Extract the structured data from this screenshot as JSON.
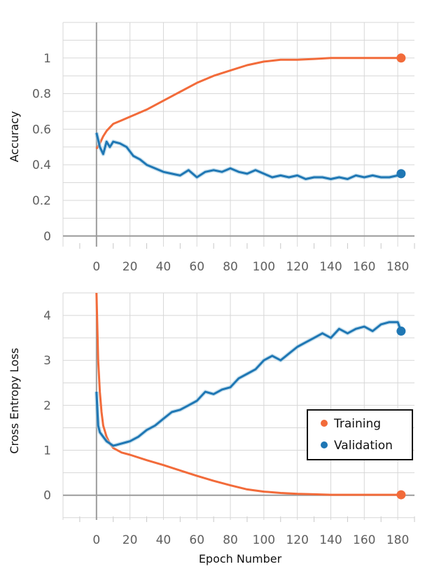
{
  "colors": {
    "training": "#f26b3a",
    "validation": "#1f77b4",
    "validation_raw": "#a6cee3"
  },
  "chart_data": [
    {
      "type": "line",
      "title": "",
      "xlabel": "",
      "ylabel": "Accuracy",
      "xlim": [
        -20,
        190
      ],
      "ylim": [
        -0.06,
        1.2
      ],
      "xticks": [
        0,
        20,
        40,
        60,
        80,
        100,
        120,
        140,
        160,
        180
      ],
      "yticks": [
        0,
        0.2,
        0.4,
        0.6,
        0.8,
        1
      ],
      "ytick_labels": [
        "0",
        "0.2",
        "0.4",
        "0.6",
        "0.8",
        "1"
      ],
      "grid": true,
      "series": [
        {
          "name": "Training",
          "x": [
            0,
            2,
            4,
            6,
            8,
            10,
            15,
            20,
            25,
            30,
            40,
            50,
            60,
            70,
            80,
            90,
            100,
            110,
            120,
            130,
            140,
            150,
            160,
            170,
            180,
            182
          ],
          "y": [
            0.49,
            0.52,
            0.56,
            0.59,
            0.61,
            0.63,
            0.65,
            0.67,
            0.69,
            0.71,
            0.76,
            0.81,
            0.86,
            0.9,
            0.93,
            0.96,
            0.98,
            0.99,
            0.99,
            0.995,
            1.0,
            1.0,
            1.0,
            1.0,
            1.0,
            1.0
          ]
        },
        {
          "name": "Validation",
          "x": [
            0,
            2,
            4,
            6,
            8,
            10,
            14,
            18,
            22,
            26,
            30,
            35,
            40,
            45,
            50,
            55,
            60,
            65,
            70,
            75,
            80,
            85,
            90,
            95,
            100,
            105,
            110,
            115,
            120,
            125,
            130,
            135,
            140,
            145,
            150,
            155,
            160,
            165,
            170,
            175,
            180,
            182
          ],
          "y": [
            0.58,
            0.5,
            0.46,
            0.53,
            0.5,
            0.53,
            0.52,
            0.5,
            0.45,
            0.43,
            0.4,
            0.38,
            0.36,
            0.35,
            0.34,
            0.37,
            0.33,
            0.36,
            0.37,
            0.36,
            0.38,
            0.36,
            0.35,
            0.37,
            0.35,
            0.33,
            0.34,
            0.33,
            0.34,
            0.32,
            0.33,
            0.33,
            0.32,
            0.33,
            0.32,
            0.34,
            0.33,
            0.34,
            0.33,
            0.33,
            0.34,
            0.35
          ]
        }
      ]
    },
    {
      "type": "line",
      "title": "",
      "xlabel": "Epoch Number",
      "ylabel": "Cross Entropy Loss",
      "xlim": [
        -20,
        190
      ],
      "ylim": [
        -0.55,
        4.5
      ],
      "xticks": [
        0,
        20,
        40,
        60,
        80,
        100,
        120,
        140,
        160,
        180
      ],
      "yticks": [
        0,
        1,
        2,
        3,
        4
      ],
      "ytick_labels": [
        "0",
        "1",
        "2",
        "3",
        "4"
      ],
      "grid": true,
      "legend": {
        "placement": "lower-right",
        "entries": [
          "Training",
          "Validation"
        ]
      },
      "series": [
        {
          "name": "Training",
          "x": [
            0,
            1,
            2,
            3,
            4,
            6,
            8,
            10,
            15,
            20,
            30,
            40,
            50,
            60,
            70,
            80,
            90,
            100,
            110,
            120,
            130,
            140,
            150,
            160,
            170,
            180,
            182
          ],
          "y": [
            4.5,
            3.0,
            2.3,
            1.85,
            1.55,
            1.3,
            1.15,
            1.05,
            0.95,
            0.9,
            0.78,
            0.67,
            0.55,
            0.43,
            0.32,
            0.22,
            0.13,
            0.08,
            0.05,
            0.03,
            0.02,
            0.01,
            0.01,
            0.01,
            0.01,
            0.01,
            0.01
          ]
        },
        {
          "name": "Validation",
          "x": [
            0,
            1,
            2,
            4,
            6,
            8,
            10,
            12,
            15,
            18,
            20,
            25,
            30,
            35,
            40,
            45,
            50,
            55,
            60,
            65,
            70,
            75,
            80,
            85,
            90,
            95,
            100,
            105,
            110,
            115,
            120,
            125,
            130,
            135,
            140,
            145,
            150,
            155,
            160,
            165,
            170,
            175,
            180,
            182
          ],
          "y": [
            2.3,
            1.55,
            1.4,
            1.3,
            1.2,
            1.15,
            1.1,
            1.12,
            1.15,
            1.18,
            1.2,
            1.3,
            1.45,
            1.55,
            1.7,
            1.85,
            1.9,
            2.0,
            2.1,
            2.3,
            2.25,
            2.35,
            2.4,
            2.6,
            2.7,
            2.8,
            3.0,
            3.1,
            3.0,
            3.15,
            3.3,
            3.4,
            3.5,
            3.6,
            3.5,
            3.7,
            3.6,
            3.7,
            3.75,
            3.65,
            3.8,
            3.85,
            3.85,
            3.65
          ]
        }
      ]
    }
  ]
}
